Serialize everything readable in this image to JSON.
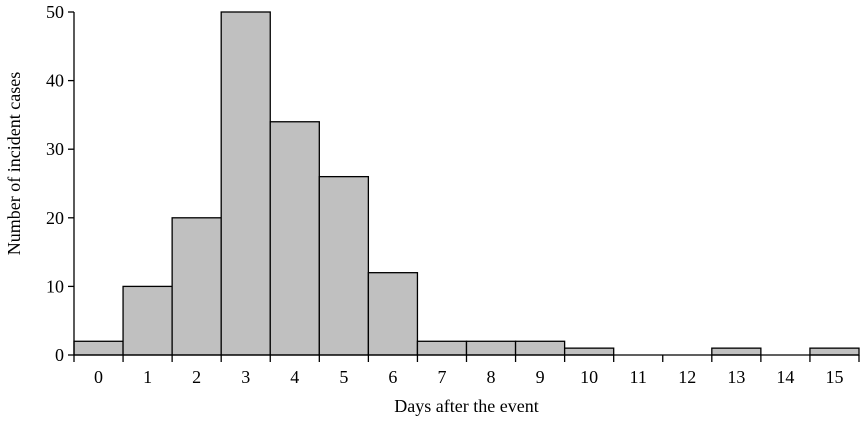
{
  "chart_data": {
    "type": "bar",
    "title": "",
    "xlabel": "Days after the event",
    "ylabel": "Number of incident cases",
    "categories": [
      "0",
      "1",
      "2",
      "3",
      "4",
      "5",
      "6",
      "7",
      "8",
      "9",
      "10",
      "11",
      "12",
      "13",
      "14",
      "15"
    ],
    "values": [
      2,
      10,
      20,
      50,
      34,
      26,
      12,
      2,
      2,
      2,
      1,
      0,
      0,
      1,
      0,
      1
    ],
    "ylim": [
      0,
      50
    ],
    "yticks": [
      0,
      10,
      20,
      30,
      40,
      50
    ],
    "grid": false,
    "legend": "none",
    "bar_color": "#c0c0c0",
    "edge_color": "#000000"
  }
}
